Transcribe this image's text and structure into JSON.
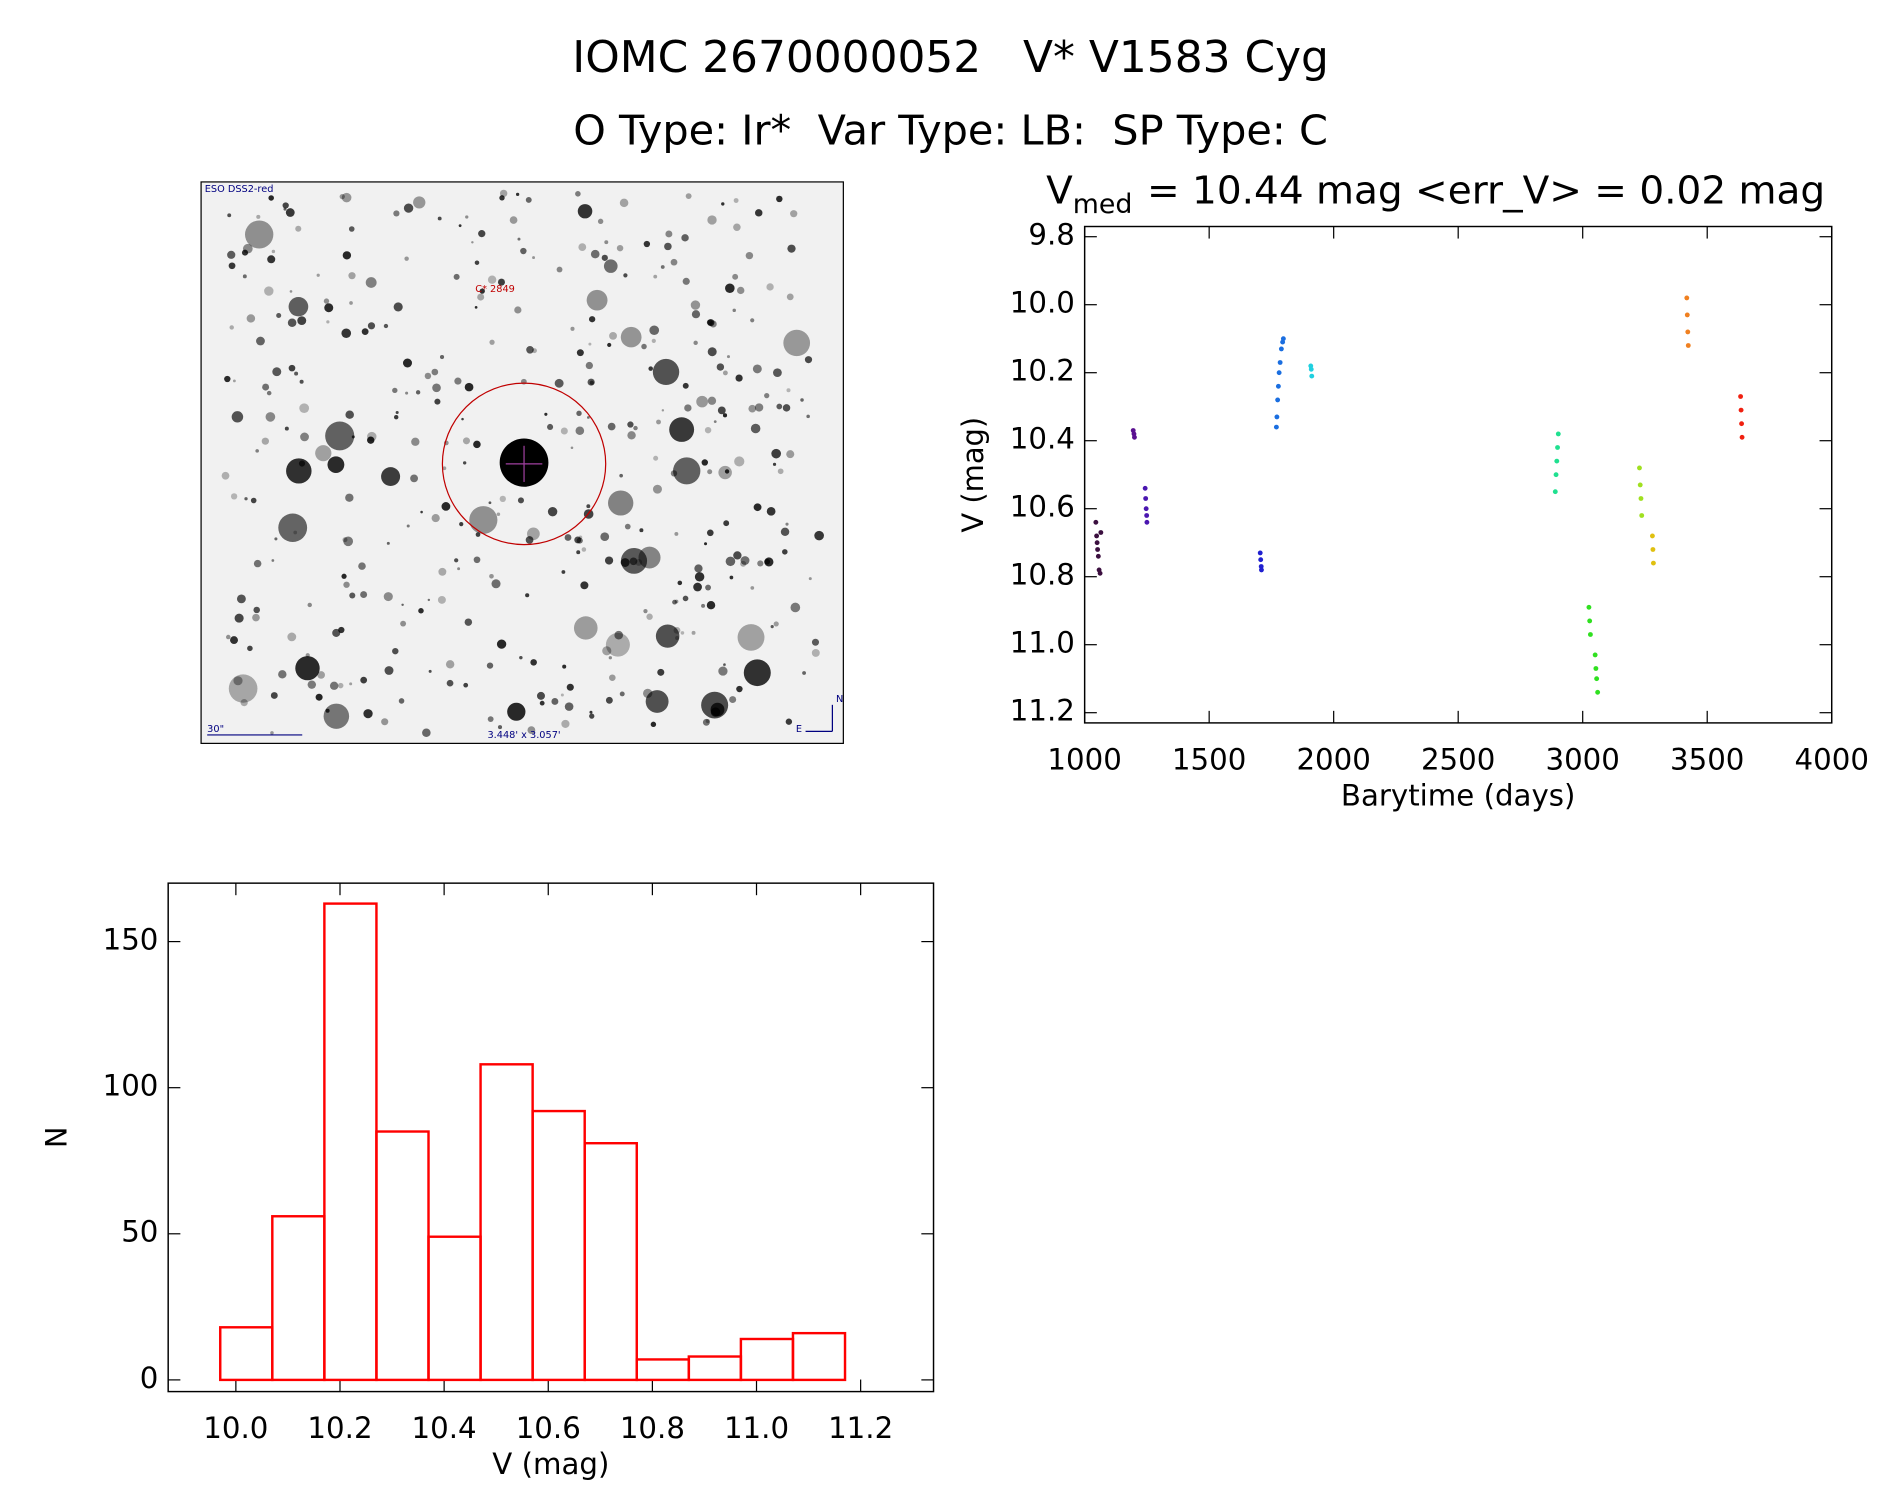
{
  "header": {
    "title": "IOMC 2670000052   V* V1583 Cyg",
    "subtitle": "O Type: Ir*  Var Type: LB:  SP Type: C"
  },
  "image": {
    "survey": "ESO DSS2-red",
    "object": "C* 2849",
    "scale": "30\"",
    "size": "3.448' x 3.057'",
    "north": "N",
    "east": "E"
  },
  "chart_data": [
    {
      "type": "scatter",
      "title_parts": [
        "V",
        "med",
        "= 10.44 mag <err_V> = 0.02 mag"
      ],
      "x_label": "Barytime (days)",
      "y_label": "V (mag)",
      "xlim": [
        1000,
        4000
      ],
      "ylim": [
        11.23,
        9.77
      ],
      "xticks": [
        1000,
        1500,
        2000,
        2500,
        3000,
        3500,
        4000
      ],
      "yticks": [
        9.8,
        {
          "value": 10,
          "label": "10.0"
        },
        10.2,
        10.4,
        10.6,
        10.8,
        {
          "value": 11,
          "label": "11.0"
        },
        11.2
      ],
      "series": [
        {
          "color": "#3b0f3f",
          "x": [
            1045,
            1048,
            1050,
            1052,
            1055,
            1058,
            1062,
            1065
          ],
          "values": [
            10.64,
            10.68,
            10.7,
            10.72,
            10.74,
            10.78,
            10.79,
            10.67
          ]
        },
        {
          "color": "#5a1090",
          "x": [
            1195,
            1198,
            1200
          ],
          "values": [
            10.37,
            10.38,
            10.39
          ]
        },
        {
          "color": "#4a16b0",
          "x": [
            1243,
            1245,
            1247,
            1249,
            1250
          ],
          "values": [
            10.54,
            10.57,
            10.6,
            10.62,
            10.64
          ]
        },
        {
          "color": "#2020d0",
          "x": [
            1705,
            1707,
            1709,
            1710
          ],
          "values": [
            10.73,
            10.75,
            10.77,
            10.78
          ]
        },
        {
          "color": "#1a6ee0",
          "x": [
            1770,
            1772,
            1775,
            1778,
            1781,
            1785,
            1790,
            1795,
            1798
          ],
          "values": [
            10.36,
            10.33,
            10.28,
            10.24,
            10.2,
            10.17,
            10.13,
            10.11,
            10.1
          ]
        },
        {
          "color": "#20d0e0",
          "x": [
            1908,
            1910,
            1912
          ],
          "values": [
            10.18,
            10.19,
            10.21
          ]
        },
        {
          "color": "#20e090",
          "x": [
            2890,
            2893,
            2896,
            2899,
            2902
          ],
          "values": [
            10.55,
            10.5,
            10.46,
            10.42,
            10.38
          ]
        },
        {
          "color": "#30e020",
          "x": [
            3025,
            3028,
            3031,
            3050,
            3053,
            3056,
            3060
          ],
          "values": [
            10.89,
            10.93,
            10.97,
            11.03,
            11.07,
            11.1,
            11.14
          ]
        },
        {
          "color": "#a0e020",
          "x": [
            3228,
            3231,
            3234,
            3237
          ],
          "values": [
            10.48,
            10.53,
            10.57,
            10.62
          ]
        },
        {
          "color": "#e0c010",
          "x": [
            3280,
            3282,
            3284
          ],
          "values": [
            10.68,
            10.72,
            10.76
          ]
        },
        {
          "color": "#f08020",
          "x": [
            3418,
            3420,
            3422,
            3424
          ],
          "values": [
            9.98,
            10.03,
            10.08,
            10.12
          ]
        },
        {
          "color": "#f02010",
          "x": [
            3634,
            3636,
            3638,
            3640
          ],
          "values": [
            10.27,
            10.31,
            10.35,
            10.39
          ]
        }
      ]
    },
    {
      "type": "histogram",
      "x_label": "V (mag)",
      "y_label": "N",
      "color": "#ff0000",
      "bins": [
        9.97,
        10.07,
        10.17,
        10.27,
        10.37,
        10.47,
        10.57,
        10.67,
        10.77,
        10.87,
        10.97,
        11.07,
        11.17
      ],
      "values": [
        18,
        56,
        163,
        85,
        49,
        108,
        92,
        81,
        7,
        8,
        14,
        16
      ],
      "xlim": [
        9.87,
        11.34
      ],
      "ylim": [
        -4,
        170
      ],
      "xticks": [
        {
          "value": 10,
          "label": "10.0"
        },
        10.2,
        10.4,
        10.6,
        10.8,
        {
          "value": 11,
          "label": "11.0"
        },
        11.2
      ],
      "yticks": [
        0,
        50,
        100,
        150
      ]
    }
  ]
}
